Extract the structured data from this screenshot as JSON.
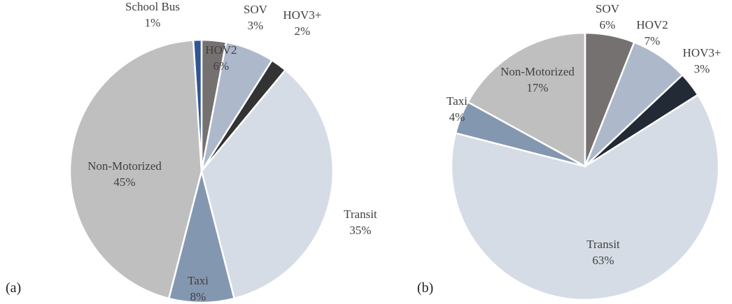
{
  "chart_data": [
    {
      "type": "pie",
      "label": "(a)",
      "categories": [
        "SOV",
        "HOV2",
        "HOV3+",
        "Transit",
        "Taxi",
        "Non-Motorized",
        "School Bus"
      ],
      "values": [
        3,
        6,
        2,
        35,
        8,
        45,
        1
      ],
      "value_labels": [
        "3%",
        "6%",
        "2%",
        "35%",
        "8%",
        "45%",
        "1%"
      ],
      "colors": [
        "#767171",
        "#adb9ca",
        "#333333",
        "#d6dce5",
        "#8497b0",
        "#bfbfbf",
        "#2f5597"
      ]
    },
    {
      "type": "pie",
      "label": "(b)",
      "categories": [
        "SOV",
        "HOV2",
        "HOV3+",
        "Transit",
        "Taxi",
        "Non-Motorized"
      ],
      "values": [
        6,
        7,
        3,
        63,
        4,
        17
      ],
      "value_labels": [
        "6%",
        "7%",
        "3%",
        "63%",
        "4%",
        "17%"
      ],
      "colors": [
        "#767171",
        "#adb9ca",
        "#222a35",
        "#d6dce5",
        "#8497b0",
        "#bfbfbf"
      ]
    }
  ]
}
